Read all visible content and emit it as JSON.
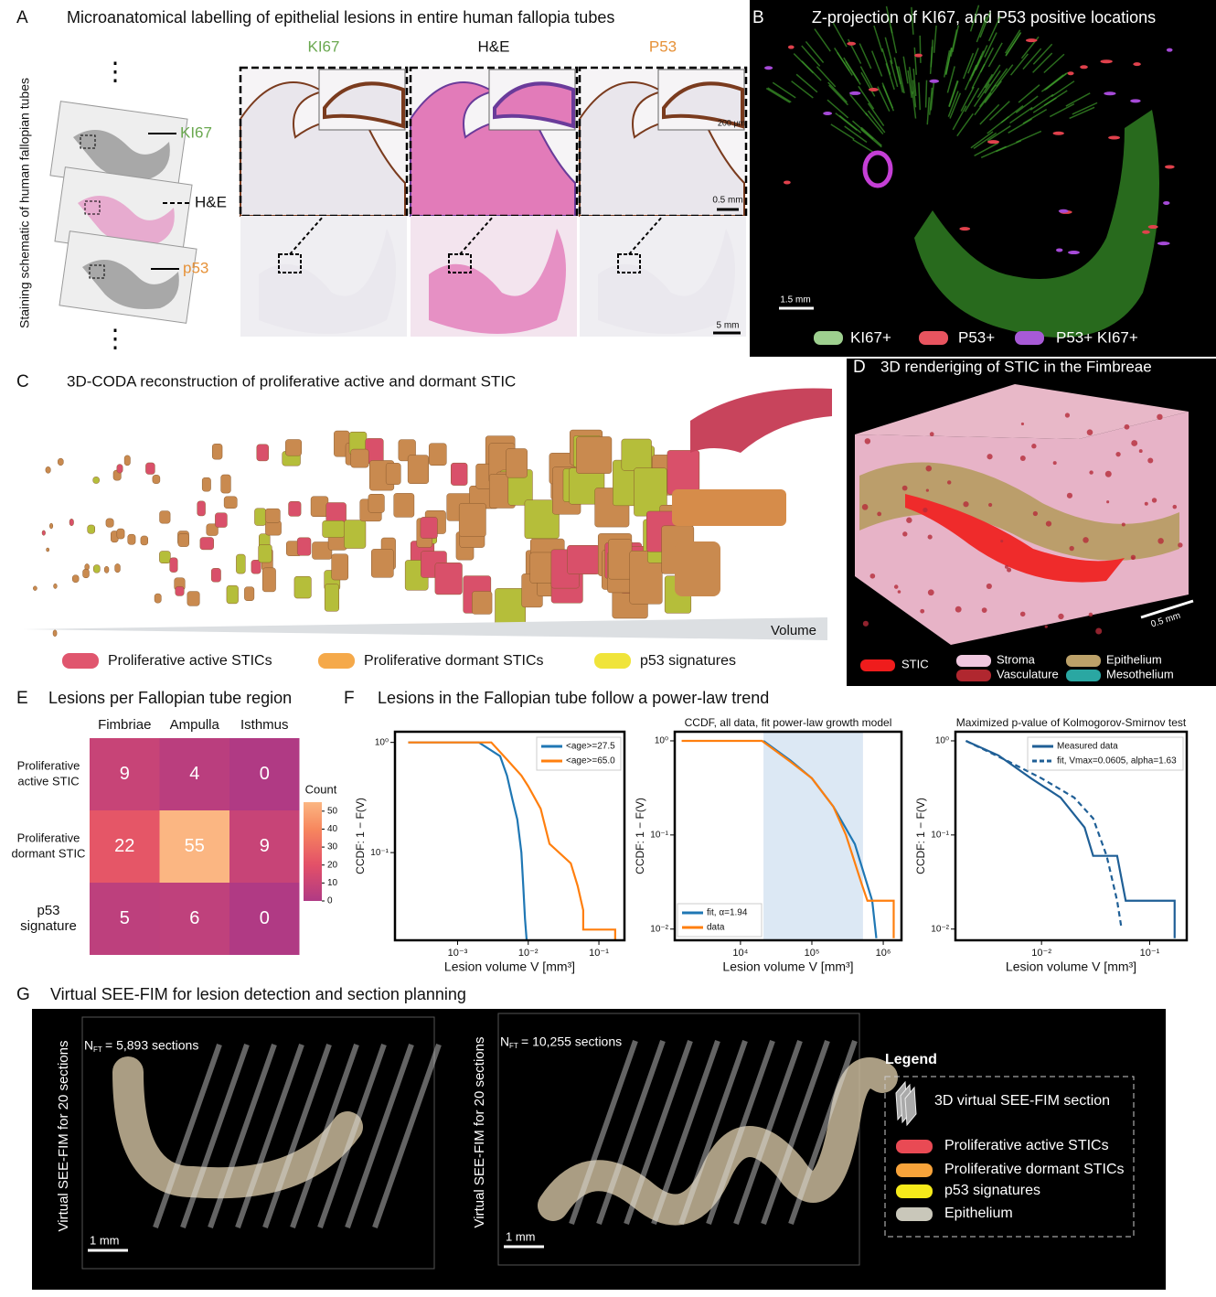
{
  "panels": {
    "a": {
      "letter": "A",
      "title": "Microanatomical labelling of epithelial lesions in entire human fallopia tubes",
      "side_label": "Staining schematic of human  fallopian tubes",
      "stains": [
        "KI67",
        "H&E",
        "p53"
      ],
      "columns": [
        "KI67",
        "H&E",
        "P53"
      ],
      "scale_labels": [
        "200 µm",
        "0.5 mm",
        "5 mm"
      ]
    },
    "b": {
      "letter": "B",
      "title": "Z-projection of KI67, and P53 positive locations",
      "scale": "1.5 mm",
      "legend": [
        "KI67+",
        "P53+",
        "P53+ KI67+"
      ]
    },
    "c": {
      "letter": "C",
      "title": "3D-CODA reconstruction of proliferative active and dormant STIC",
      "axis": "Volume",
      "legend": [
        "Proliferative active STICs",
        "Proliferative dormant STICs",
        "p53 signatures"
      ]
    },
    "d": {
      "letter": "D",
      "title": "3D renderiging of STIC in the Fimbreae",
      "scale": "0.5 mm",
      "legend": [
        "STIC",
        "Stroma",
        "Vasculature",
        "Epithelium",
        "Mesothelium"
      ]
    },
    "e": {
      "letter": "E",
      "title": "Lesions per Fallopian tube region",
      "columns": [
        "Fimbriae",
        "Ampulla",
        "Isthmus"
      ],
      "rows": [
        [
          "Proliferative",
          "active STIC"
        ],
        [
          "Proliferative",
          "dormant STIC"
        ],
        [
          "p53",
          "signature"
        ]
      ],
      "values": [
        [
          9,
          4,
          0
        ],
        [
          22,
          55,
          9
        ],
        [
          5,
          6,
          0
        ]
      ],
      "colorbar_title": "Count",
      "colorbar_lim": [
        0,
        55
      ],
      "colorbar_ticks": [
        0,
        10,
        20,
        30,
        40,
        50
      ]
    },
    "f": {
      "letter": "F",
      "title": "Lesions in the Fallopian tube follow a power-law trend",
      "plots": [
        {
          "ylabel": "CCDF: 1 − F(V)",
          "xlabel": "Lesion volume V [mm³]",
          "log": true,
          "xlim": [
            0.00013,
            0.23
          ],
          "ylim": [
            0.016,
            1.25
          ],
          "xticks": [
            {
              "value": 0.001,
              "label": "10⁻³"
            },
            {
              "value": 0.01,
              "label": "10⁻²"
            },
            {
              "value": 0.1,
              "label": "10⁻¹"
            }
          ],
          "yticks": [
            {
              "value": 1,
              "label": "10⁰"
            },
            {
              "value": 0.1,
              "label": "10⁻¹"
            }
          ],
          "legend_corner": "upper right",
          "series": [
            {
              "name": "<age>=27.5",
              "color": "#1f77b4",
              "x": [
                0.0002,
                0.002,
                0.004,
                0.005,
                0.006,
                0.007,
                0.008,
                0.0085,
                0.009,
                0.0095
              ],
              "y": [
                1,
                1,
                0.75,
                0.5,
                0.3,
                0.2,
                0.1,
                0.05,
                0.025,
                0.016
              ]
            },
            {
              "name": "<age>=65.0",
              "color": "#ff7f0e",
              "x": [
                0.0002,
                0.003,
                0.005,
                0.008,
                0.01,
                0.015,
                0.02,
                0.04,
                0.05,
                0.06,
                0.06,
                0.17,
                0.17
              ],
              "y": [
                1,
                1,
                0.7,
                0.5,
                0.4,
                0.25,
                0.12,
                0.08,
                0.05,
                0.03,
                0.02,
                0.02,
                0.016
              ]
            }
          ]
        },
        {
          "title": "CCDF, all data, fit power-law growth model",
          "ylabel": "CCDF: 1 − F(V)",
          "xlabel": "Lesion volume V [mm³]",
          "log": true,
          "xlim": [
            1200,
            1800000
          ],
          "ylim": [
            0.0076,
            1.25
          ],
          "shaded_range": [
            21000,
            520000
          ],
          "xticks": [
            {
              "value": 10000,
              "label": "10⁴"
            },
            {
              "value": 100000,
              "label": "10⁵"
            },
            {
              "value": 1000000,
              "label": "10⁶"
            }
          ],
          "yticks": [
            {
              "value": 1,
              "label": "10⁰"
            },
            {
              "value": 0.1,
              "label": "10⁻¹"
            },
            {
              "value": 0.01,
              "label": "10⁻²"
            }
          ],
          "legend_corner": "lower left",
          "series": [
            {
              "name": "fit, α=1.94",
              "color": "#1f77b4",
              "x": [
                21000,
                50000,
                100000,
                200000,
                400000,
                700000,
                800000
              ],
              "y": [
                1,
                0.62,
                0.4,
                0.2,
                0.08,
                0.02,
                0.008
              ]
            },
            {
              "name": "data",
              "color": "#ff7f0e",
              "x": [
                1500,
                20000,
                50000,
                100000,
                200000,
                300000,
                500000,
                600000,
                1400000,
                1400000
              ],
              "y": [
                1,
                1,
                0.6,
                0.4,
                0.2,
                0.1,
                0.03,
                0.02,
                0.02,
                0.008
              ]
            }
          ]
        },
        {
          "title": "Maximized p-value of Kolmogorov-Smirnov test",
          "ylabel": "CCDF: 1 − F(V)",
          "xlabel": "Lesion volume V [mm³]",
          "log": true,
          "xlim": [
            0.0016,
            0.22
          ],
          "ylim": [
            0.0076,
            1.25
          ],
          "xticks": [
            {
              "value": 0.01,
              "label": "10⁻²"
            },
            {
              "value": 0.1,
              "label": "10⁻¹"
            }
          ],
          "yticks": [
            {
              "value": 1,
              "label": "10⁰"
            },
            {
              "value": 0.1,
              "label": "10⁻¹"
            },
            {
              "value": 0.01,
              "label": "10⁻²"
            }
          ],
          "legend_corner": "upper right",
          "series": [
            {
              "name": "Measured data",
              "color": "#1f5f96",
              "x": [
                0.002,
                0.004,
                0.008,
                0.015,
                0.025,
                0.03,
                0.05,
                0.06,
                0.17,
                0.17
              ],
              "y": [
                1,
                0.7,
                0.4,
                0.25,
                0.12,
                0.06,
                0.06,
                0.02,
                0.02,
                0.008
              ]
            },
            {
              "name": "fit, Vmax=0.0605, alpha=1.63",
              "color": "#1f5f96",
              "dash": true,
              "x": [
                0.002,
                0.005,
                0.01,
                0.02,
                0.03,
                0.04,
                0.05,
                0.055
              ],
              "y": [
                1,
                0.6,
                0.4,
                0.25,
                0.15,
                0.06,
                0.02,
                0.01
              ]
            }
          ]
        }
      ]
    },
    "g": {
      "letter": "G",
      "title": "Virtual SEE-FIM for lesion detection and section planning",
      "views": [
        {
          "side_label": "Virtual SEE-FIM for 20 sections",
          "n": "N",
          "n_sub": "FT",
          "count": "= 5,893 sections",
          "scale": "1 mm"
        },
        {
          "side_label": "Virtual SEE-FIM for 20 sections",
          "n": "N",
          "n_sub": "FT",
          "count": "= 10,255 sections",
          "scale": "1 mm"
        }
      ],
      "legend_title": "Legend",
      "legend": [
        "3D virtual SEE-FIM section",
        "Proliferative active STICs",
        "Proliferative dormant STICs",
        "p53 signatures",
        "Epithelium"
      ]
    }
  }
}
